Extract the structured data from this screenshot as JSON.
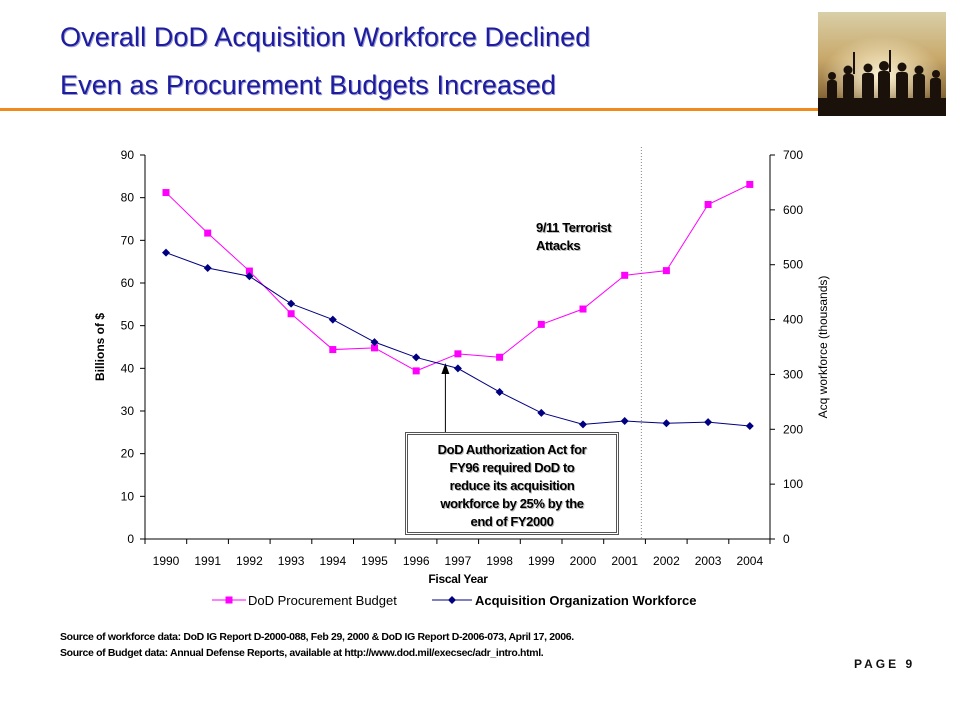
{
  "slide": {
    "title_line1": "Overall DoD Acquisition Workforce Declined",
    "title_line2": "Even as Procurement Budgets Increased",
    "source_workforce": "Source of workforce data:  DoD IG Report D-2000-088, Feb 29, 2000 & DoD IG Report D-2006-073, April 17, 2006.",
    "source_budget": "Source of Budget data:  Annual Defense Reports, available at http://www.dod.mil/execsec/adr_intro.html.",
    "page_number": "PAGE 9",
    "photo_icon": "soldiers-silhouette-photo"
  },
  "colors": {
    "title": "#1c1c9c",
    "rule": "#f08a1c",
    "budget_series": "#ff00ff",
    "workforce_series": "#000080"
  },
  "chart_data": {
    "type": "line",
    "x": [
      1990,
      1991,
      1992,
      1993,
      1994,
      1995,
      1996,
      1997,
      1998,
      1999,
      2000,
      2001,
      2002,
      2003,
      2004
    ],
    "xticks": [
      "1990",
      "1991",
      "1992",
      "1993",
      "1994",
      "1995",
      "1996",
      "1997",
      "1998",
      "1999",
      "2000",
      "2001",
      "2002",
      "2003",
      "2004"
    ],
    "xlabel": "Fiscal Year",
    "ylabel_left": "Billions of $",
    "ylabel_right": "Acq workforce (thousands)",
    "ylim_left": [
      0,
      90
    ],
    "ylim_right": [
      0,
      700
    ],
    "yticks_left": [
      0,
      10,
      20,
      30,
      40,
      50,
      60,
      70,
      80,
      90
    ],
    "yticks_right": [
      0,
      100,
      200,
      300,
      400,
      500,
      600,
      700
    ],
    "series": [
      {
        "name": "DoD Procurement Budget",
        "axis": "left",
        "marker": "square",
        "values": [
          81.2,
          71.7,
          62.8,
          52.8,
          44.4,
          44.8,
          39.4,
          43.4,
          42.6,
          50.3,
          53.9,
          61.8,
          62.9,
          78.4,
          83.1
        ]
      },
      {
        "name": "Acquisition Organization Workforce",
        "axis": "right",
        "marker": "diamond",
        "values": [
          522,
          494,
          479,
          429,
          400,
          359,
          331,
          311,
          268,
          230,
          209,
          215,
          211,
          213,
          206
        ]
      }
    ],
    "annotations": [
      {
        "text_lines": [
          "9/11 Terrorist",
          "Attacks"
        ],
        "marker_line_x": 2001.4
      },
      {
        "text_lines": [
          "DoD Authorization Act for",
          "FY96 required DoD to",
          "reduce its acquisition",
          "workforce by 25% by the",
          "end of FY2000"
        ],
        "arrow_x": 1996.7
      }
    ],
    "grid": false,
    "legend": "bottom"
  }
}
